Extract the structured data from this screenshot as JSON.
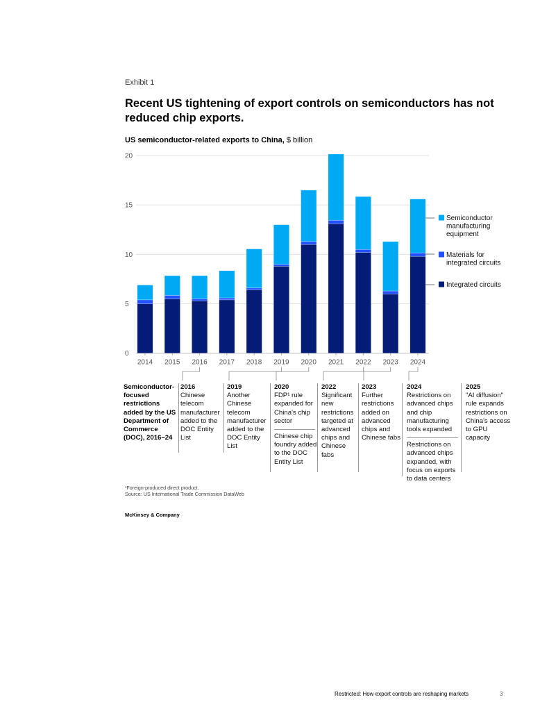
{
  "exhibit_label": "Exhibit 1",
  "title": "Recent US tightening of export controls on semiconductors has not reduced chip exports.",
  "subtitle_bold": "US semiconductor-related exports to China,",
  "subtitle_unit": " $ billion",
  "colors": {
    "integrated_circuits": "#051c76",
    "materials": "#2251ff",
    "equipment": "#00a9f4",
    "grid": "#e0e0e0"
  },
  "chart_data": {
    "type": "bar",
    "stacked": true,
    "title": "US semiconductor-related exports to China, $ billion",
    "xlabel": "",
    "ylabel": "$ billion",
    "ylim": [
      0,
      20
    ],
    "yticks": [
      0,
      5,
      10,
      15,
      20
    ],
    "grid": true,
    "legend_position": "right",
    "categories": [
      "2014",
      "2015",
      "2016",
      "2017",
      "2018",
      "2019",
      "2020",
      "2021",
      "2022",
      "2023",
      "2024"
    ],
    "series": [
      {
        "name": "Integrated circuits",
        "color": "#051c76",
        "values": [
          5.0,
          5.5,
          5.3,
          5.4,
          6.4,
          8.8,
          11.0,
          13.1,
          10.2,
          6.0,
          9.8
        ]
      },
      {
        "name": "Materials for integrated circuits",
        "color": "#2251ff",
        "values": [
          0.4,
          0.35,
          0.2,
          0.2,
          0.2,
          0.2,
          0.3,
          0.35,
          0.3,
          0.3,
          0.35
        ]
      },
      {
        "name": "Semiconductor manufacturing equipment",
        "color": "#00a9f4",
        "values": [
          1.5,
          2.0,
          2.35,
          2.75,
          3.95,
          4.0,
          5.2,
          6.7,
          5.35,
          5.0,
          5.45
        ]
      }
    ],
    "totals": [
      6.9,
      7.85,
      7.85,
      8.35,
      10.55,
      13.0,
      16.5,
      20.15,
      15.85,
      11.3,
      15.6
    ],
    "legend": [
      {
        "lines": [
          "Semiconductor",
          "manufacturing",
          "equipment"
        ],
        "series": 2
      },
      {
        "lines": [
          "Materials for",
          "integrated circuits"
        ],
        "series": 1
      },
      {
        "lines": [
          "Integrated circuits"
        ],
        "series": 0
      }
    ]
  },
  "annotations": {
    "left_label": "Semiconductor-focused restrictions added by the US Department of Commerce (DOC), 2016–24",
    "columns": [
      {
        "year": "2016",
        "items": [
          "Chinese telecom manufacturer added to the DOC Entity List"
        ],
        "links_to": "2016"
      },
      {
        "year": "2019",
        "items": [
          "Another Chinese telecom manufacturer added to the DOC Entity List"
        ],
        "links_to": "2019"
      },
      {
        "year": "2020",
        "items": [
          "FDP¹ rule expanded for China's chip sector",
          "Chinese chip foundry added to the DOC Entity List"
        ],
        "links_to": "2020"
      },
      {
        "year": "2022",
        "items": [
          "Significant new restrictions targeted at advanced chips and Chinese fabs"
        ],
        "links_to": "2022"
      },
      {
        "year": "2023",
        "items": [
          "Further restrictions added on advanced chips and Chinese fabs"
        ],
        "links_to": "2023"
      },
      {
        "year": "2024",
        "items": [
          "Restrictions on advanced chips and chip manufacturing tools expanded",
          "Restrictions on advanced chips expanded, with focus on exports to data centers"
        ],
        "links_to": "2024"
      },
      {
        "year": "2025",
        "items": [
          "\"AI diffusion\" rule expands restrictions on China's access to GPU capacity"
        ],
        "links_to": null
      }
    ]
  },
  "footnote_1": "¹Foreign-produced direct product.",
  "source": "Source: US International Trade Commission DataWeb",
  "brand": "McKinsey & Company",
  "running_footer": "Restricted: How export controls are reshaping markets",
  "page_number": "3"
}
